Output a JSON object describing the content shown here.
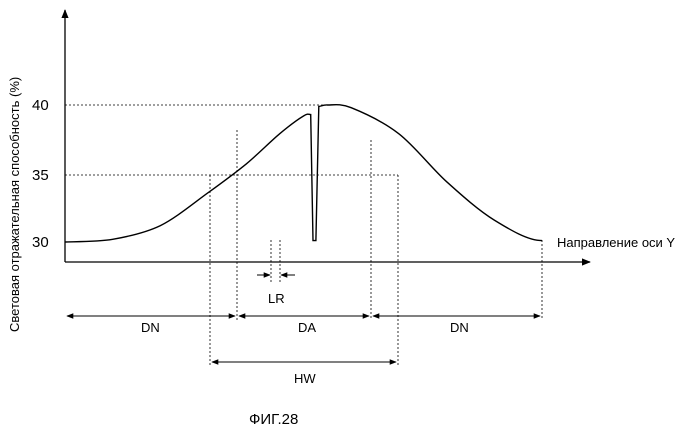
{
  "figure": {
    "ylabel": "Световая отражательная способность (%)",
    "xlabel": "Направление оси Y",
    "caption": "ФИГ.28",
    "yticks": [
      "40",
      "35",
      "30"
    ],
    "annotations": {
      "LR": "LR",
      "DN_left": "DN",
      "DA": "DA",
      "DN_right": "DN",
      "HW": "HW"
    }
  },
  "chart_data": {
    "type": "line",
    "ylabel": "Световая отражательная способность (%)",
    "xlabel": "Направление оси Y",
    "y_ticks": [
      30,
      35,
      40
    ],
    "series": [
      {
        "points": [
          [
            0,
            30
          ],
          [
            10,
            30.2
          ],
          [
            20,
            31.2
          ],
          [
            30,
            33.6
          ],
          [
            38,
            35.7
          ],
          [
            45,
            37.9
          ],
          [
            50,
            39.2
          ],
          [
            51.5,
            39.3
          ],
          [
            52,
            30.1
          ],
          [
            52.6,
            30.1
          ],
          [
            53.2,
            39.9
          ],
          [
            55,
            40
          ],
          [
            60,
            39.8
          ],
          [
            70,
            37.9
          ],
          [
            80,
            34.4
          ],
          [
            90,
            31.6
          ],
          [
            100,
            30.1
          ]
        ]
      }
    ]
  }
}
